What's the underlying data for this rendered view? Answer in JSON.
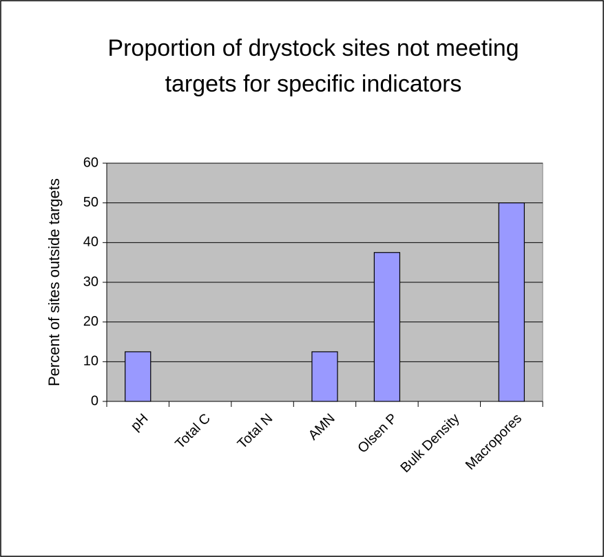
{
  "chart_data": {
    "type": "bar",
    "title": "Proportion of drystock sites not meeting targets for specific indicators",
    "y_label": "Percent of sites outside targets",
    "categories": [
      "pH",
      "Total C",
      "Total N",
      "AMN",
      "Olsen P",
      "Bulk Density",
      "Macropores"
    ],
    "values": [
      12.5,
      0,
      0,
      12.5,
      37.5,
      0,
      50
    ],
    "color": "#9999ff",
    "ylim": [
      0,
      60
    ],
    "yticks": [
      0,
      10,
      20,
      30,
      40,
      50,
      60
    ],
    "grid": true
  }
}
